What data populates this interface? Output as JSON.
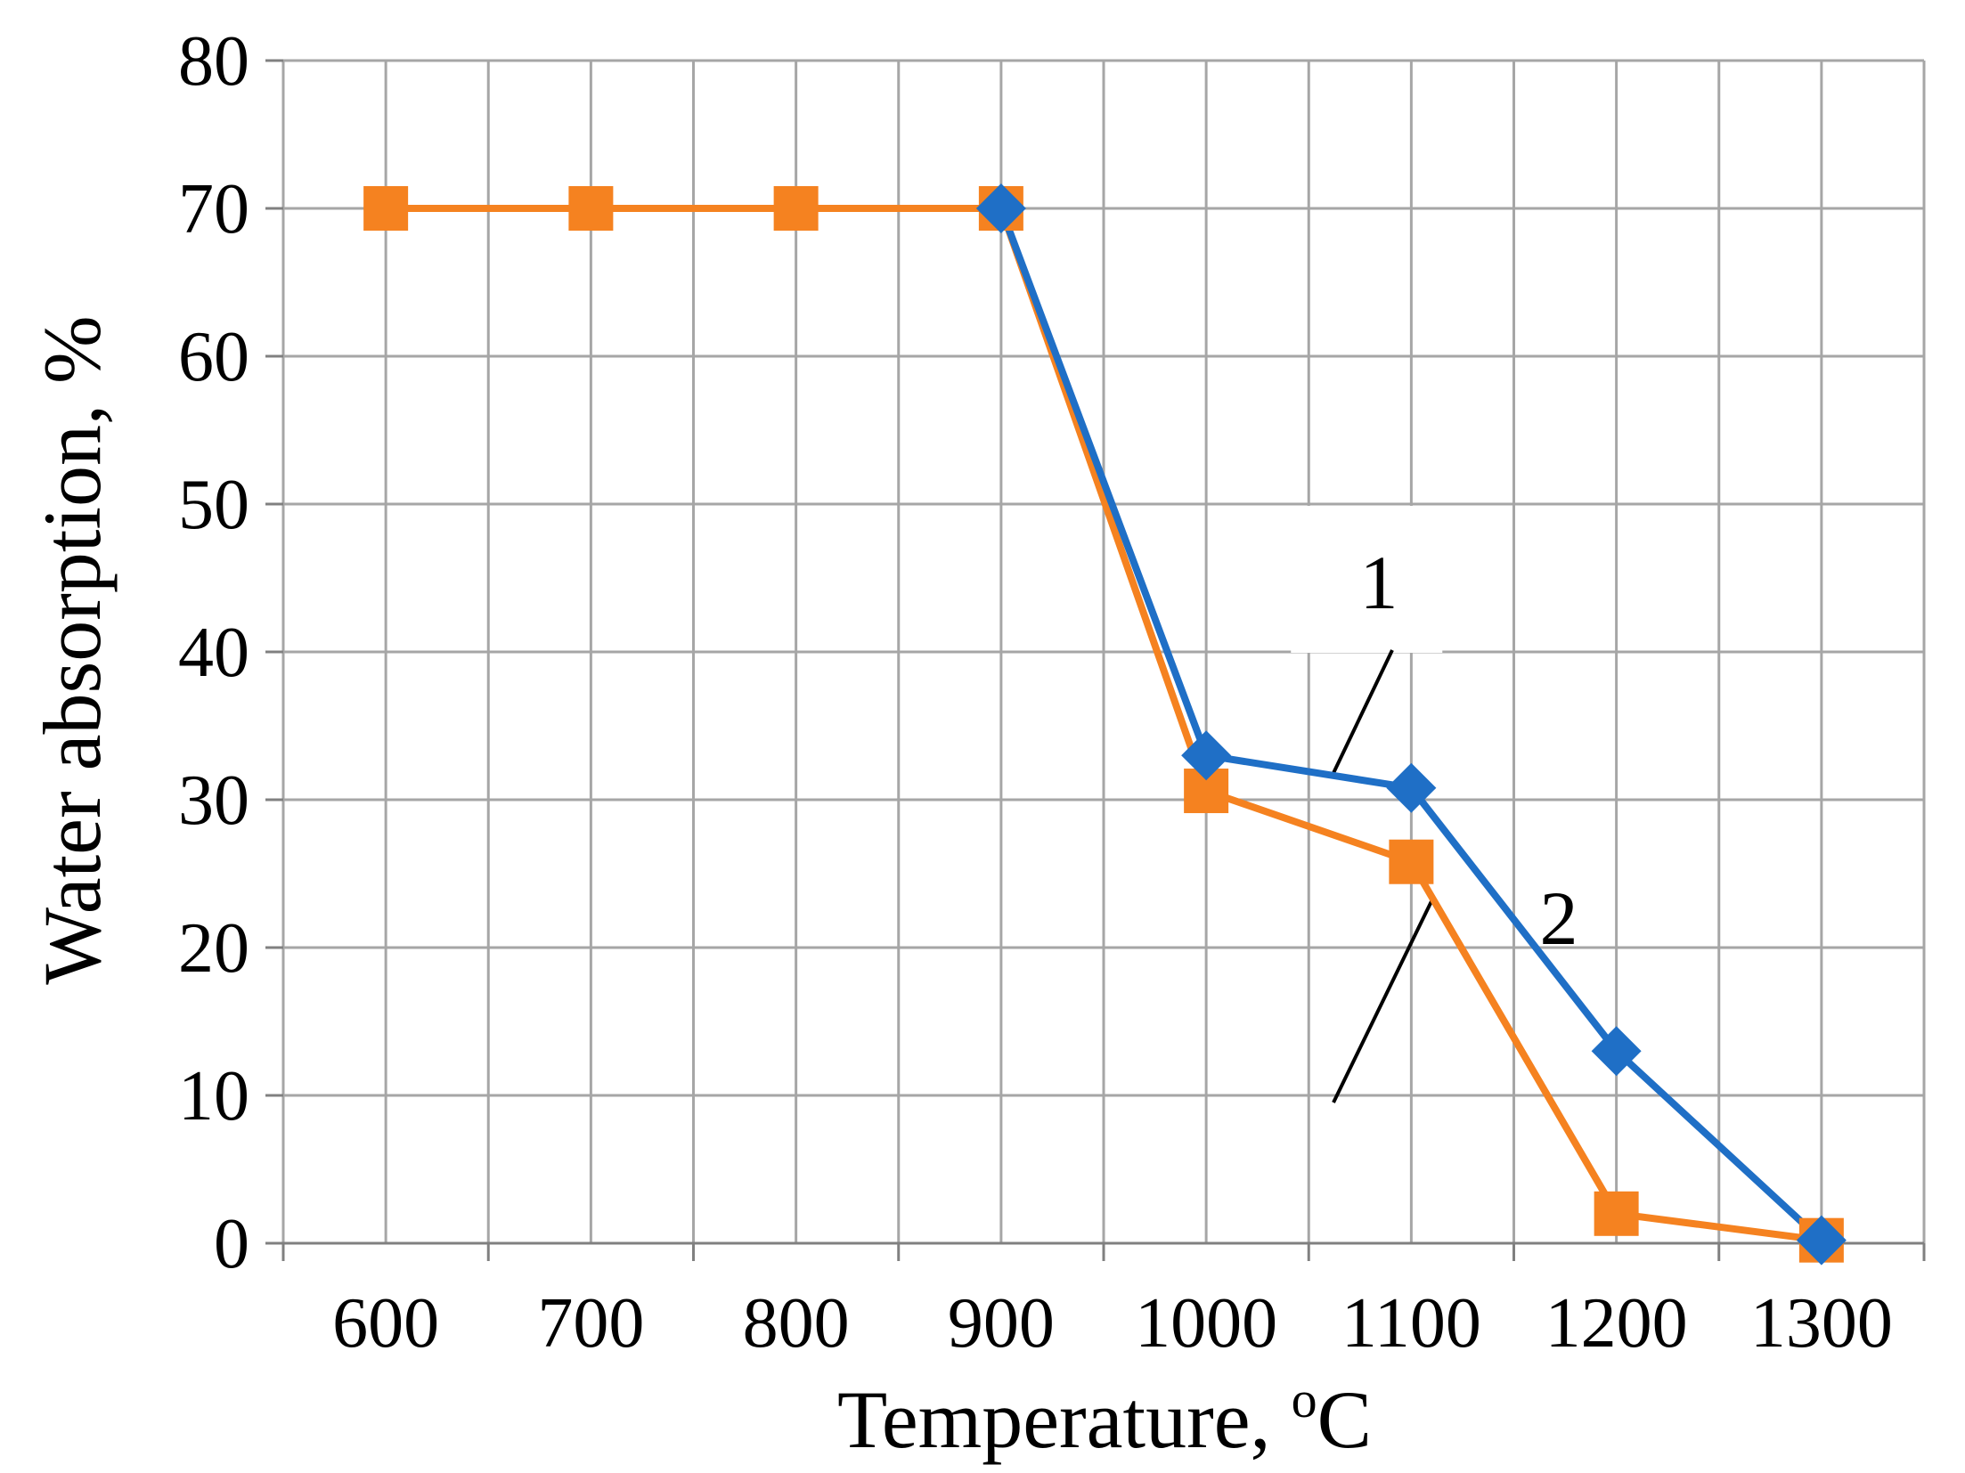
{
  "chart_data": {
    "type": "line",
    "xlabel": "Temperature, ",
    "xlabel_sup": "o",
    "xlabel_suffix": "C",
    "ylabel": "Water absorption, %",
    "x": [
      600,
      700,
      800,
      900,
      1000,
      1100,
      1200,
      1300
    ],
    "x_tick_labels": [
      "600",
      "700",
      "800",
      "900",
      "1000",
      "1100",
      "1200",
      "1300"
    ],
    "ylim": [
      0,
      80
    ],
    "y_ticks": [
      0,
      10,
      20,
      30,
      40,
      50,
      60,
      70,
      80
    ],
    "y_tick_labels": [
      "0",
      "10",
      "20",
      "30",
      "40",
      "50",
      "60",
      "70",
      "80"
    ],
    "grid": true,
    "series": [
      {
        "color": "#1F6FC6",
        "marker": "diamond",
        "x": [
          900,
          1000,
          1100,
          1200,
          1300
        ],
        "values": [
          70,
          33,
          30.8,
          13,
          0.2
        ]
      },
      {
        "color": "#F58220",
        "marker": "square",
        "x": [
          600,
          700,
          800,
          900,
          1000,
          1100,
          1200,
          1300
        ],
        "values": [
          70,
          70,
          70,
          70,
          30.6,
          25.8,
          2,
          0.2
        ]
      }
    ],
    "annotations": [
      {
        "text": "1",
        "series": 0
      },
      {
        "text": "2",
        "series": 1
      }
    ]
  }
}
